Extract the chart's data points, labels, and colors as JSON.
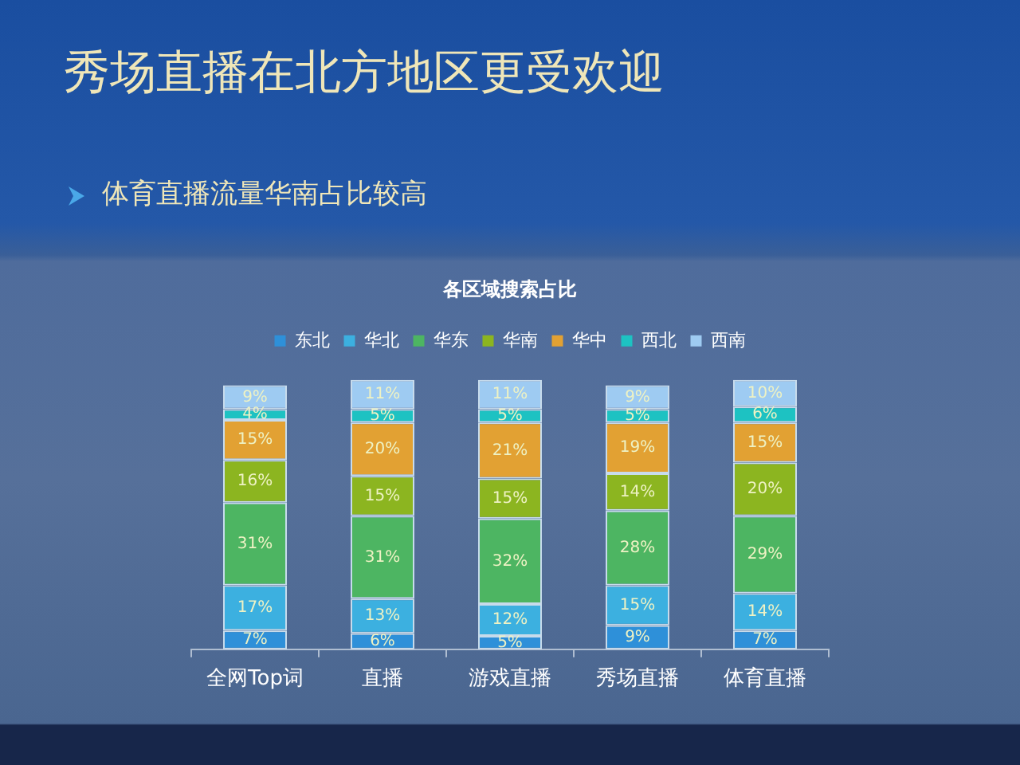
{
  "chart_data": {
    "type": "bar",
    "stacked": true,
    "title": "秀场直播在北方地区更受欢迎",
    "subtitle": "体育直播流量华南占比较高",
    "annotations": [
      "各区域搜索占比"
    ],
    "categories": [
      "全网Top词",
      "直播",
      "游戏直播",
      "秀场直播",
      "体育直播"
    ],
    "series": [
      {
        "name": "东北",
        "color": "#2e90d9",
        "values": [
          7,
          6,
          5,
          9,
          7
        ],
        "value_labels": [
          "7%",
          "6%",
          "5%",
          "9%",
          "7%"
        ]
      },
      {
        "name": "华北",
        "color": "#3cb0e0",
        "values": [
          17,
          13,
          12,
          15,
          14
        ],
        "value_labels": [
          "17%",
          "13%",
          "12%",
          "15%",
          "14%"
        ]
      },
      {
        "name": "华东",
        "color": "#4db562",
        "values": [
          31,
          31,
          32,
          28,
          29
        ],
        "value_labels": [
          "31%",
          "31%",
          "32%",
          "28%",
          "29%"
        ]
      },
      {
        "name": "华南",
        "color": "#8cb520",
        "values": [
          16,
          15,
          15,
          14,
          20
        ],
        "value_labels": [
          "16%",
          "15%",
          "15%",
          "14%",
          "20%"
        ]
      },
      {
        "name": "华中",
        "color": "#e2a133",
        "values": [
          15,
          20,
          21,
          19,
          15
        ],
        "value_labels": [
          "15%",
          "20%",
          "21%",
          "19%",
          "15%"
        ]
      },
      {
        "name": "西北",
        "color": "#1dc2c2",
        "values": [
          4,
          5,
          5,
          5,
          6
        ],
        "value_labels": [
          "4%",
          "5%",
          "5%",
          "5%",
          "6%"
        ]
      },
      {
        "name": "西南",
        "color": "#9ecbf2",
        "values": [
          9,
          11,
          11,
          9,
          10
        ],
        "value_labels": [
          "9%",
          "11%",
          "11%",
          "9%",
          "10%"
        ]
      }
    ],
    "legend": "top"
  }
}
